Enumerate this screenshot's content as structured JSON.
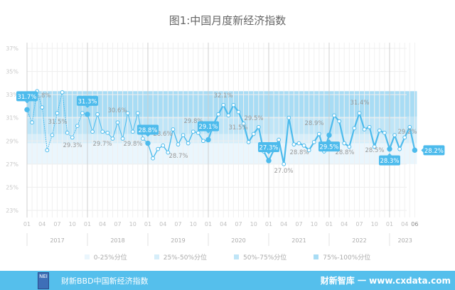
{
  "chart_data": {
    "type": "line",
    "title": "图1:中国月度新经济指数",
    "xlabel": "",
    "ylabel": "",
    "ylim": [
      23,
      37
    ],
    "y_ticks": [
      "23%",
      "25%",
      "27%",
      "29%",
      "31%",
      "33%",
      "35%",
      "37%"
    ],
    "y_tick_values": [
      23,
      25,
      27,
      29,
      31,
      33,
      35,
      37
    ],
    "x_tick_labels": [
      "01",
      "04",
      "07",
      "10",
      "01",
      "04",
      "07",
      "10",
      "01",
      "04",
      "07",
      "10",
      "01",
      "04",
      "07",
      "10",
      "01",
      "04",
      "07",
      "10",
      "01",
      "04",
      "07",
      "10",
      "01",
      "04",
      "06"
    ],
    "x_tick_months": [
      0,
      3,
      6,
      9,
      12,
      15,
      18,
      21,
      24,
      27,
      30,
      33,
      36,
      39,
      42,
      45,
      48,
      51,
      54,
      57,
      60,
      63,
      66,
      69,
      72,
      75,
      77
    ],
    "years": [
      "2017",
      "2018",
      "2019",
      "2020",
      "2021",
      "2022",
      "2023"
    ],
    "grid": true,
    "bands": [
      {
        "name": "0-25%分位",
        "from": 27.0,
        "to": 28.8,
        "color": "#eaf6fd"
      },
      {
        "name": "25%-50%分位",
        "from": 28.8,
        "to": 29.6,
        "color": "#d6eefa"
      },
      {
        "name": "50%-75%分位",
        "from": 29.6,
        "to": 31.1,
        "color": "#bfe5f7"
      },
      {
        "name": "75%-100%分位",
        "from": 31.1,
        "to": 33.3,
        "color": "#a8dcf4"
      }
    ],
    "legend_position": "bottom",
    "series": [
      {
        "name": "新经济指数",
        "color": "#4dbbec",
        "start": "2017-01",
        "values": [
          31.7,
          30.6,
          33.3,
          31.9,
          28.2,
          29.5,
          31.4,
          33.2,
          29.7,
          29.3,
          30.3,
          31.4,
          31.3,
          29.8,
          31.3,
          29.8,
          29.7,
          29.2,
          30.6,
          29.2,
          31.4,
          29.8,
          31.4,
          29.2,
          28.8,
          27.5,
          28.3,
          28.6,
          28.0,
          30.0,
          28.7,
          29.5,
          28.8,
          29.8,
          29.7,
          29.0,
          29.1,
          30.4,
          31.3,
          32.1,
          31.2,
          32.1,
          31.5,
          30.5,
          28.9,
          29.6,
          30.2,
          28.1,
          27.3,
          28.2,
          29.1,
          27.0,
          31.0,
          28.7,
          28.8,
          28.6,
          28.2,
          28.9,
          29.6,
          28.1,
          29.5,
          31.2,
          30.7,
          28.8,
          28.5,
          30.1,
          31.4,
          30.0,
          30.2,
          28.5,
          29.9,
          29.7,
          28.3,
          29.5,
          28.3,
          29.3,
          30.2,
          28.2
        ]
      }
    ],
    "highlight_labels": [
      {
        "month": 0,
        "text": "31.7%",
        "pos": "above"
      },
      {
        "month": 12,
        "text": "31.3%",
        "pos": "above"
      },
      {
        "month": 24,
        "text": "28.8%",
        "pos": "above"
      },
      {
        "month": 36,
        "text": "29.1%",
        "pos": "above"
      },
      {
        "month": 48,
        "text": "27.3%",
        "pos": "above"
      },
      {
        "month": 60,
        "text": "29.5%",
        "pos": "below"
      },
      {
        "month": 72,
        "text": "28.3%",
        "pos": "below"
      },
      {
        "month": 77,
        "text": "28.2%",
        "pos": "right"
      }
    ],
    "annotations": [
      "31.8%",
      "31.5%",
      "29.3%",
      "29.7%",
      "30.6%",
      "29.8%",
      "28.6%",
      "28.7%",
      "29.8%",
      "32.1%",
      "31.5%",
      "29.5%",
      "27.0%",
      "28.8%",
      "28.9%",
      "28.8%",
      "31.4%",
      "28.5%",
      "29.2%"
    ]
  },
  "footer": {
    "logo_text": "NEI",
    "source": "财新BBD中国新经济指数",
    "watermark": "财新智库 一 www.cxdata.com"
  }
}
